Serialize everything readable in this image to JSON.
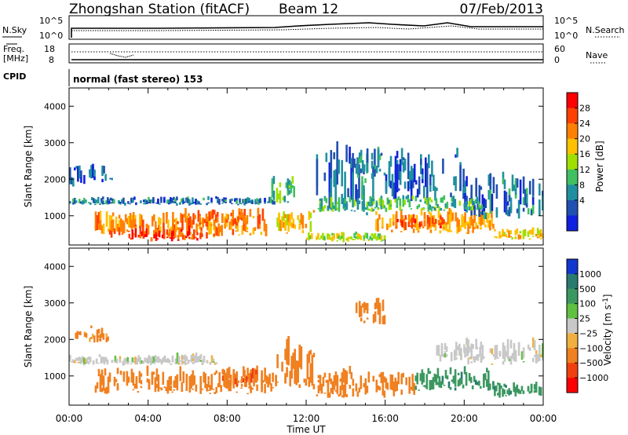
{
  "header": {
    "station": "Zhongshan Station (fitACF)",
    "beam": "Beam 12",
    "date": "07/Feb/2013"
  },
  "summary_panel": {
    "nsky_label": "N.Sky",
    "nsky_ticks": [
      "10^5",
      "10^0"
    ],
    "nsearch_label": "N.Search",
    "nsearch_ticks": [
      "10^5",
      "10^0"
    ],
    "freq_label_1": "Freq.",
    "freq_label_2": "[MHz]",
    "freq_ticks": [
      "18",
      "8"
    ],
    "nave_label": "Nave",
    "nave_ticks": [
      "60",
      "0"
    ],
    "cpid_label": "CPID",
    "cpid_text": "normal (fast stereo) 153"
  },
  "x_axis": {
    "label": "Time UT",
    "ticks": [
      "00:00",
      "04:00",
      "08:00",
      "12:00",
      "16:00",
      "20:00",
      "00:00"
    ],
    "hours": [
      0,
      4,
      8,
      12,
      16,
      20,
      24
    ]
  },
  "power_scale": {
    "title": "Power [dB]",
    "ticks": [
      "28",
      "24",
      "20",
      "16",
      "12",
      "8",
      "4"
    ],
    "colors": [
      "#ff0000",
      "#ff4000",
      "#ff8000",
      "#ffc000",
      "#a0e000",
      "#40c060",
      "#2090a0",
      "#2050b0",
      "#1020e0"
    ]
  },
  "velocity_scale": {
    "title": "Velocity [m s",
    "sup": "-1",
    "title_end": "]",
    "ticks": [
      "1000",
      "500",
      "100",
      "25",
      "−25",
      "−100",
      "−500",
      "−1000"
    ],
    "colors": [
      "#1038d0",
      "#2a7a70",
      "#3c9860",
      "#60c040",
      "#c8c8c8",
      "#f0b040",
      "#f08020",
      "#f04010",
      "#ff0000"
    ]
  },
  "chart_data": [
    {
      "type": "heatmap",
      "name": "power",
      "ylabel": "Slant Range [km]",
      "xlabel": "Time UT",
      "xlim": [
        0,
        24
      ],
      "ylim": [
        200,
        4500
      ],
      "yticks": [
        "1000",
        "2000",
        "3000",
        "4000"
      ],
      "ytick_values": [
        1000,
        2000,
        3000,
        4000
      ],
      "colorbar": "Power [dB]",
      "regions": [
        {
          "x": [
            0.0,
            10.5
          ],
          "y": [
            1300,
            1550
          ],
          "value": 6
        },
        {
          "x": [
            1.0,
            2.2
          ],
          "y": [
            1900,
            2500
          ],
          "value": 5
        },
        {
          "x": [
            0.0,
            0.8
          ],
          "y": [
            1800,
            2400
          ],
          "value": 5
        },
        {
          "x": [
            1.3,
            10.0
          ],
          "y": [
            400,
            1300
          ],
          "value": 22
        },
        {
          "x": [
            3.0,
            7.0
          ],
          "y": [
            300,
            800
          ],
          "value": 26
        },
        {
          "x": [
            6.5,
            9.0
          ],
          "y": [
            700,
            1200
          ],
          "value": 24
        },
        {
          "x": [
            10.5,
            12.5
          ],
          "y": [
            500,
            1200
          ],
          "value": 18
        },
        {
          "x": [
            10.0,
            11.5
          ],
          "y": [
            1300,
            2200
          ],
          "value": 10
        },
        {
          "x": [
            12.0,
            16.0
          ],
          "y": [
            300,
            600
          ],
          "value": 14
        },
        {
          "x": [
            12.5,
            15.5
          ],
          "y": [
            1000,
            3200
          ],
          "value": 6
        },
        {
          "x": [
            14.5,
            16.0
          ],
          "y": [
            2000,
            3000
          ],
          "value": 8
        },
        {
          "x": [
            15.5,
            21.5
          ],
          "y": [
            500,
            1300
          ],
          "value": 20
        },
        {
          "x": [
            16.5,
            19.0
          ],
          "y": [
            600,
            1100
          ],
          "value": 26
        },
        {
          "x": [
            16.0,
            20.0
          ],
          "y": [
            1400,
            3000
          ],
          "value": 5
        },
        {
          "x": [
            20.0,
            24.0
          ],
          "y": [
            900,
            2300
          ],
          "value": 6
        },
        {
          "x": [
            21.5,
            24.0
          ],
          "y": [
            350,
            700
          ],
          "value": 18
        },
        {
          "x": [
            12.5,
            21.0
          ],
          "y": [
            1100,
            1600
          ],
          "value": 10
        }
      ]
    },
    {
      "type": "heatmap",
      "name": "velocity",
      "ylabel": "Slant Range [km]",
      "xlabel": "Time UT",
      "xlim": [
        0,
        24
      ],
      "ylim": [
        200,
        4500
      ],
      "yticks": [
        "1000",
        "2000",
        "3000",
        "4000"
      ],
      "ytick_values": [
        1000,
        2000,
        3000,
        4000
      ],
      "colorbar": "Velocity [m s-1]",
      "regions": [
        {
          "x": [
            0.0,
            4.5
          ],
          "y": [
            1300,
            1600
          ],
          "value": 0
        },
        {
          "x": [
            1.0,
            2.0
          ],
          "y": [
            1900,
            2400
          ],
          "value": -150
        },
        {
          "x": [
            0.3,
            0.9
          ],
          "y": [
            2000,
            2300
          ],
          "value": -150
        },
        {
          "x": [
            1.3,
            10.5
          ],
          "y": [
            500,
            1300
          ],
          "value": -200
        },
        {
          "x": [
            4.0,
            7.5
          ],
          "y": [
            1300,
            1700
          ],
          "value": 0
        },
        {
          "x": [
            7.5,
            9.5
          ],
          "y": [
            700,
            1300
          ],
          "value": -400
        },
        {
          "x": [
            10.5,
            12.5
          ],
          "y": [
            600,
            2300
          ],
          "value": -300
        },
        {
          "x": [
            12.5,
            17.5
          ],
          "y": [
            400,
            1300
          ],
          "value": -300
        },
        {
          "x": [
            14.5,
            16.0
          ],
          "y": [
            2400,
            3200
          ],
          "value": -150
        },
        {
          "x": [
            17.5,
            21.5
          ],
          "y": [
            600,
            1300
          ],
          "value": 300
        },
        {
          "x": [
            20.0,
            24.0
          ],
          "y": [
            1300,
            2200
          ],
          "value": 0
        },
        {
          "x": [
            21.5,
            24.0
          ],
          "y": [
            400,
            900
          ],
          "value": 300
        },
        {
          "x": [
            18.5,
            21.0
          ],
          "y": [
            1400,
            2000
          ],
          "value": 0
        }
      ]
    }
  ]
}
